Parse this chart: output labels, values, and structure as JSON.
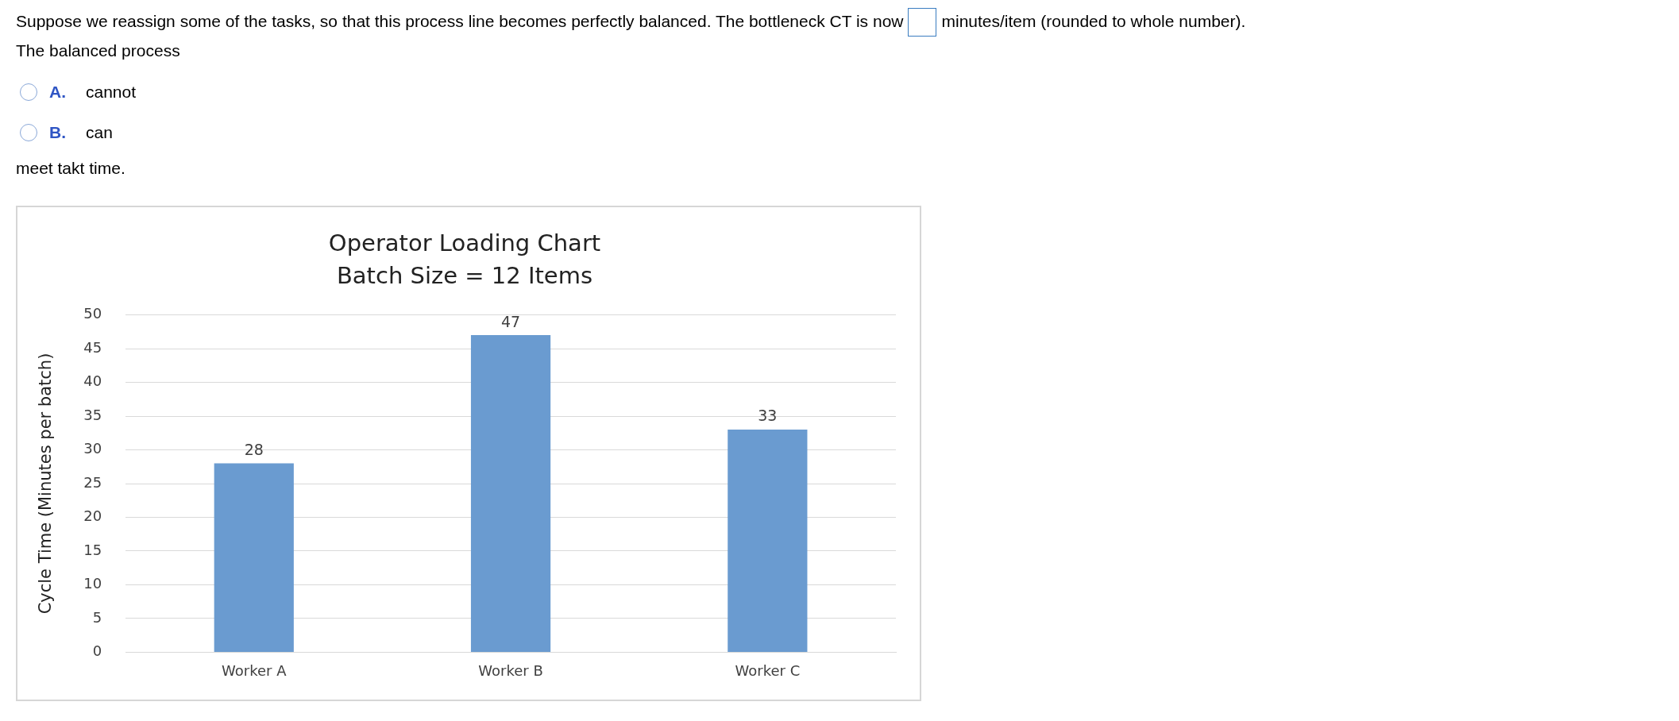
{
  "chart_data": {
    "type": "bar",
    "title": "Operator Loading Chart",
    "subtitle": "Batch Size = 12 Items",
    "ylabel": "Cycle Time (Minutes per batch)",
    "categories": [
      "Worker A",
      "Worker B",
      "Worker C"
    ],
    "values": [
      28,
      47,
      33
    ],
    "color": "#6a9bd0",
    "ylim": [
      0,
      50
    ],
    "yticks": [
      0,
      5,
      10,
      15,
      20,
      25,
      30,
      35,
      40,
      45,
      50
    ],
    "grid": "y",
    "data_labels": true,
    "annotations": [
      "Suppose we reassign some of the tasks, so that this process line becomes perfectly balanced.  The bottleneck CT is now",
      "minutes/item (rounded to whole number).",
      "The balanced process",
      "A.",
      "cannot",
      "B.",
      "can",
      "meet takt time."
    ]
  }
}
